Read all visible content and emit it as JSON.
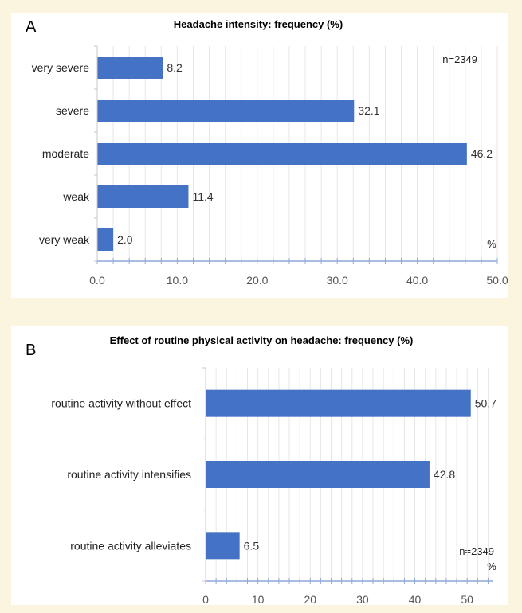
{
  "chart_data": [
    {
      "type": "bar",
      "orientation": "horizontal",
      "panel": "A",
      "title": "Headache intensity: frequency (%)",
      "categories": [
        "very severe",
        "severe",
        "moderate",
        "weak",
        "very weak"
      ],
      "values": [
        8.2,
        32.1,
        46.2,
        11.4,
        2.0
      ],
      "value_labels": [
        "8.2",
        "32.1",
        "46.2",
        "11.4",
        "2.0"
      ],
      "xticks": [
        "0.0",
        "10.0",
        "20.0",
        "30.0",
        "40.0",
        "50.0"
      ],
      "xlim": [
        0,
        50
      ],
      "unit": "%",
      "annotation": "n=2349",
      "bar_color": "#4472c4",
      "grid": true
    },
    {
      "type": "bar",
      "orientation": "horizontal",
      "panel": "B",
      "title": "Effect of routine physical activity on headache: frequency (%)",
      "categories": [
        "routine activity without effect",
        "routine activity intensifies",
        "routine activity alleviates"
      ],
      "values": [
        50.7,
        42.8,
        6.5
      ],
      "value_labels": [
        "50.7",
        "42.8",
        "6.5"
      ],
      "xticks": [
        "0",
        "10",
        "20",
        "30",
        "40",
        "50"
      ],
      "xlim": [
        0,
        55
      ],
      "unit": "%",
      "annotation": "n=2349",
      "bar_color": "#4472c4",
      "grid": true
    }
  ]
}
